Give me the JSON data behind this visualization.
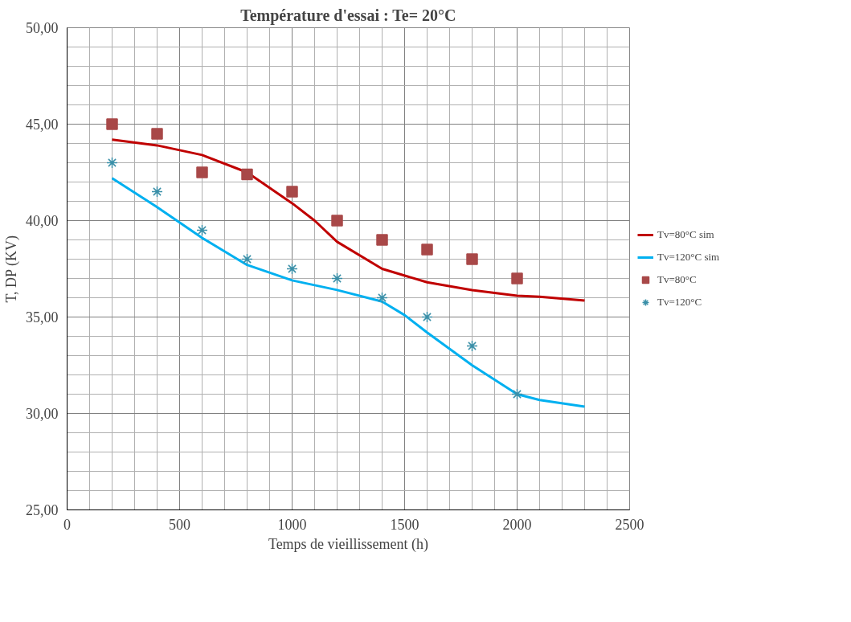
{
  "chart_data": {
    "type": "line",
    "title": "Température d'essai : Te= 20°C",
    "xlabel": "Temps de vieillissement (h)",
    "ylabel": "T, DP (KV)",
    "xlim": [
      0,
      2500
    ],
    "xticks": [
      0,
      500,
      1000,
      1500,
      2000,
      2500
    ],
    "ylim": [
      25,
      50
    ],
    "yticks": [
      {
        "value": 25,
        "label": "25,00"
      },
      {
        "value": 30,
        "label": "30,00"
      },
      {
        "value": 35,
        "label": "35,00"
      },
      {
        "value": 40,
        "label": "40,00"
      },
      {
        "value": 45,
        "label": "45,00"
      },
      {
        "value": 50,
        "label": "50,00"
      }
    ],
    "grid": true,
    "legend": "right",
    "line_style": "solid",
    "series": [
      {
        "name": "Tv=80°C sim",
        "marker": "none",
        "color": "#c00000",
        "x": [
          200,
          400,
          600,
          800,
          1000,
          1100,
          1200,
          1400,
          1600,
          1800,
          2000,
          2100,
          2300
        ],
        "values": [
          44.2,
          43.9,
          43.4,
          42.5,
          40.9,
          40.0,
          38.9,
          37.5,
          36.8,
          36.4,
          36.1,
          36.05,
          35.85
        ]
      },
      {
        "name": "Tv=120°C sim",
        "marker": "none",
        "color": "#00b0f0",
        "x": [
          200,
          400,
          600,
          800,
          1000,
          1200,
          1400,
          1500,
          1600,
          1800,
          2000,
          2100,
          2300
        ],
        "values": [
          42.2,
          40.7,
          39.1,
          37.7,
          36.9,
          36.4,
          35.8,
          35.1,
          34.2,
          32.5,
          31.0,
          30.7,
          30.35
        ]
      },
      {
        "name": "Tv=80°C",
        "type": "scatter",
        "marker": "square",
        "color": "#a84848",
        "x": [
          200,
          400,
          600,
          800,
          1000,
          1200,
          1400,
          1600,
          1800,
          2000
        ],
        "values": [
          45.0,
          44.5,
          42.5,
          42.4,
          41.5,
          40.0,
          39.0,
          38.5,
          38.0,
          37.0
        ]
      },
      {
        "name": "Tv=120°C",
        "type": "scatter",
        "marker": "cross",
        "color": "#3a8fa8",
        "x": [
          200,
          400,
          600,
          800,
          1000,
          1200,
          1400,
          1600,
          1800,
          2000
        ],
        "values": [
          43.0,
          41.5,
          39.5,
          38.0,
          37.5,
          37.0,
          36.0,
          35.0,
          33.5,
          31.0
        ]
      }
    ]
  }
}
